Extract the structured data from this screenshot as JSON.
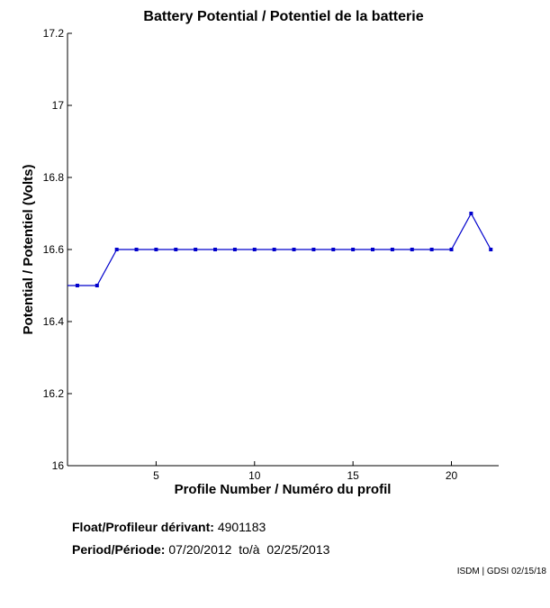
{
  "chart_data": {
    "type": "line",
    "title": "Battery Potential / Potentiel de la batterie",
    "xlabel": "Profile Number / Numéro du profil",
    "ylabel": "Potential / Potentiel (Volts)",
    "xlim": [
      0.5,
      22.4
    ],
    "ylim": [
      16,
      17.2
    ],
    "xticks": [
      5,
      10,
      15,
      20
    ],
    "yticks": [
      16,
      16.2,
      16.4,
      16.6,
      16.8,
      17,
      17.2
    ],
    "grid": false,
    "series": [
      {
        "x": [
          1,
          2,
          3,
          4,
          5,
          6,
          7,
          8,
          9,
          10,
          11,
          12,
          13,
          14,
          15,
          16,
          17,
          18,
          19,
          20,
          21,
          22
        ],
        "y": [
          16.5,
          16.5,
          16.6,
          16.6,
          16.6,
          16.6,
          16.6,
          16.6,
          16.6,
          16.6,
          16.6,
          16.6,
          16.6,
          16.6,
          16.6,
          16.6,
          16.6,
          16.6,
          16.6,
          16.6,
          16.7,
          16.6
        ],
        "color": "#0000cc"
      }
    ]
  },
  "info": {
    "float_label": "Float/Profileur dérivant:",
    "float_value": "4901183",
    "period_label": "Period/Période:",
    "period_value": "07/20/2012  to/à  02/25/2013"
  },
  "credit": "ISDM | GDSI 02/15/18"
}
